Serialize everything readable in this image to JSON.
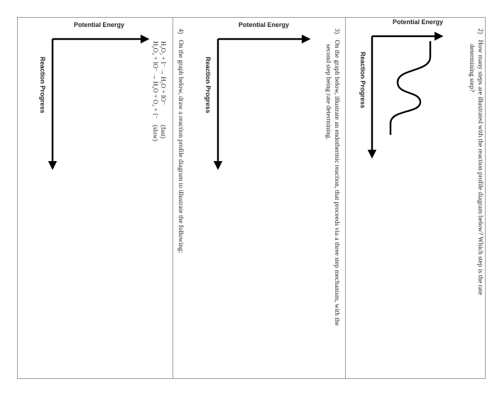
{
  "panels": [
    {
      "number": "2)",
      "lines": [
        "How many steps are illustrated with the reaction profile diagram below? Which step is the rate",
        "determining step?"
      ],
      "y_axis_label": "Potential Energy",
      "x_axis_label": "Reaction Progress",
      "has_curve": true
    },
    {
      "number": "3)",
      "lines": [
        "On the graph below, illustrate an endothermic reaction, that proceeds via a three step mechanism, with the",
        "second step being rate determining."
      ],
      "y_axis_label": "Potential Energy",
      "x_axis_label": "Reaction Progress"
    },
    {
      "number": "4)",
      "lines": [
        "On the graph below, draw a reaction profile diagram to illustrate the following:"
      ],
      "y_axis_label": "Potential Energy",
      "x_axis_label": "Reaction Progress",
      "equations": [
        {
          "text": "H₂O₂ + I⁻ → H₂O + IO⁻",
          "rate": "(fast)"
        },
        {
          "text": "H₂O₂ + IO⁻ → H₂O + O₂ + I⁻",
          "rate": "(slow)"
        }
      ]
    }
  ]
}
